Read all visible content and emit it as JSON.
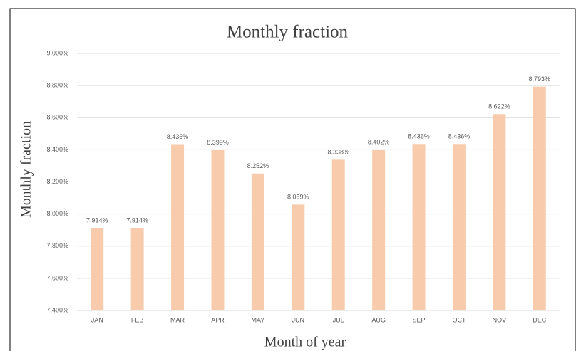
{
  "chart_data": {
    "type": "bar",
    "title": "Monthly fraction",
    "x_label": "Month of year",
    "y_label": "Monthly fraction",
    "categories": [
      "JAN",
      "FEB",
      "MAR",
      "APR",
      "MAY",
      "JUN",
      "JUL",
      "AUG",
      "SEP",
      "OCT",
      "NOV",
      "DEC"
    ],
    "values": [
      7.914,
      7.914,
      8.435,
      8.399,
      8.252,
      8.059,
      8.338,
      8.402,
      8.436,
      8.436,
      8.622,
      8.793
    ],
    "value_labels": [
      "7.914%",
      "7.914%",
      "8.435%",
      "8.399%",
      "8.252%",
      "8.059%",
      "8.338%",
      "8.402%",
      "8.436%",
      "8.436%",
      "8.622%",
      "8.793%"
    ],
    "color": "#f8cbad",
    "ylim": [
      7.4,
      9.0
    ],
    "yticks": [
      {
        "value": 7.4,
        "label": "7.400%"
      },
      {
        "value": 7.6,
        "label": "7.600%"
      },
      {
        "value": 7.8,
        "label": "7.800%"
      },
      {
        "value": 8.0,
        "label": "8.000%"
      },
      {
        "value": 8.2,
        "label": "8.200%"
      },
      {
        "value": 8.4,
        "label": "8.400%"
      },
      {
        "value": 8.6,
        "label": "8.600%"
      },
      {
        "value": 8.8,
        "label": "8.800%"
      },
      {
        "value": 9.0,
        "label": "9.000%"
      }
    ],
    "grid": true
  }
}
